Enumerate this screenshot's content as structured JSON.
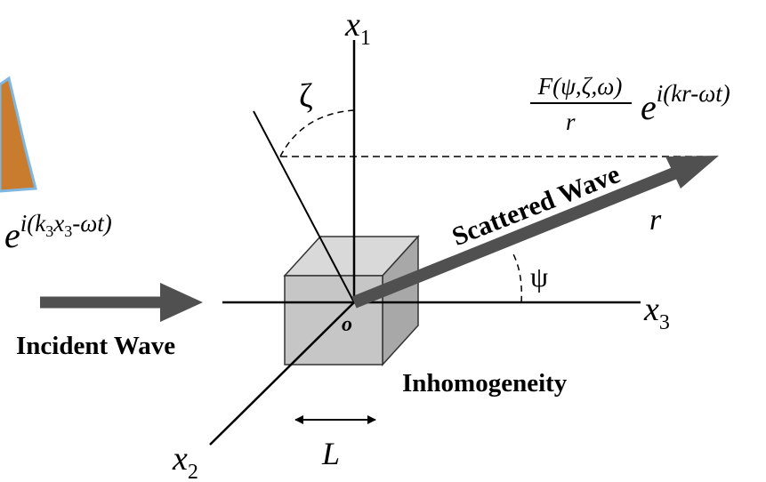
{
  "axes": [
    {
      "symbol": "x",
      "subscript": "1"
    },
    {
      "symbol": "x",
      "subscript": "2"
    },
    {
      "symbol": "x",
      "subscript": "3"
    }
  ],
  "origin": "o",
  "zeta": "ζ",
  "psi": "ψ",
  "scattered": {
    "label": "Scattered Wave",
    "r": "r",
    "numerator": "F(ψ,ζ,ω)",
    "denominator": "r",
    "base": "e",
    "exponent": "i(kr-ωt)"
  },
  "incident": {
    "label": "Incident Wave",
    "base": "e",
    "exponent": [
      "i(k",
      "3",
      "x",
      "3",
      "-ωt)"
    ]
  },
  "inhomogeneity": "Inhomogeneity",
  "length": "L"
}
